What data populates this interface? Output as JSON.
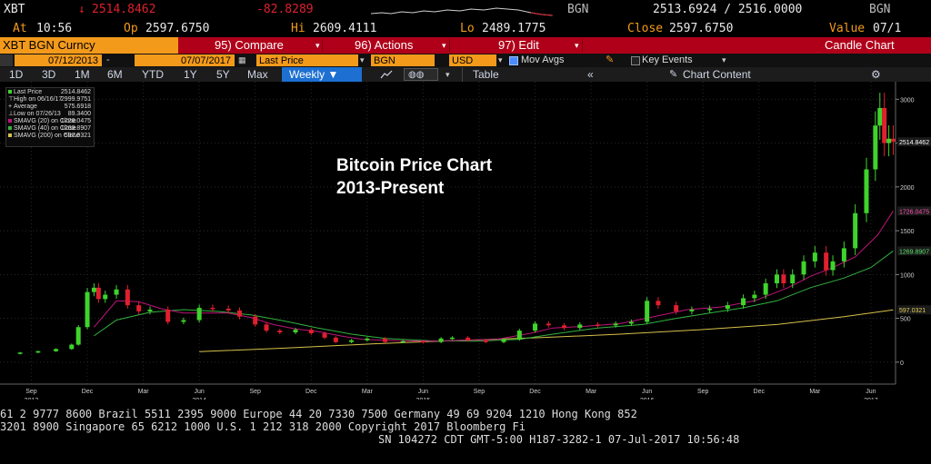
{
  "header": {
    "ticker": "XBT",
    "arrow": "↓",
    "last": "2514.8462",
    "change": "-82.8289",
    "currency1": "BGN",
    "bidask": "2513.6924 / 2516.0000",
    "currency2": "BGN",
    "at_label": "At",
    "time": "10:56",
    "op_label": "Op",
    "open": "2597.6750",
    "hi_label": "Hi",
    "high": "2609.4111",
    "lo_label": "Lo",
    "low": "2489.1775",
    "close_label": "Close",
    "close": "2597.6750",
    "value_label": "Value",
    "value": "07/1"
  },
  "menu": {
    "security": "XBT BGN Curncy",
    "compare": "95) Compare",
    "actions": "96) Actions",
    "edit": "97) Edit",
    "chart_type": "Candle Chart"
  },
  "toolbar": {
    "start_date": "07/12/2013",
    "end_date": "07/07/2017",
    "field": "Last Price",
    "source": "BGN",
    "currency": "USD",
    "mov_avgs": "Mov Avgs",
    "key_events": "Key Events"
  },
  "periods": {
    "items": [
      "1D",
      "3D",
      "1M",
      "6M",
      "YTD",
      "1Y",
      "5Y",
      "Max"
    ],
    "frequency": "Weekly ▼",
    "table": "Table",
    "chart_content": "Chart Content"
  },
  "legend": [
    {
      "label": "Last Price",
      "value": "2514.8462"
    },
    {
      "label": "High on 06/16/17",
      "value": "2999.9751"
    },
    {
      "label": "Average",
      "value": "575.6918"
    },
    {
      "label": "Low on 07/26/13",
      "value": "89.3400"
    },
    {
      "label": "SMAVG (20) on Close",
      "value": "1726.0475"
    },
    {
      "label": "SMAVG (40) on Close",
      "value": "1269.8907"
    },
    {
      "label": "SMAVG (200) on Close",
      "value": "597.0321"
    }
  ],
  "annotation": {
    "line1": "Bitcoin Price Chart",
    "line2": "2013-Present"
  },
  "colors": {
    "up": "#3fd42c",
    "down": "#e0202e",
    "sma20": "#c0147a",
    "sma40": "#33b23f",
    "sma200": "#d8c04a",
    "red_bar": "#b00019",
    "orange_field": "#f39a1b"
  },
  "chart_data": {
    "type": "candlestick",
    "title": "Bitcoin Price Chart 2013-Present",
    "y_ticks": [
      0,
      500,
      1000,
      1500,
      2000,
      2500,
      3000
    ],
    "ylim": [
      -250,
      3200
    ],
    "xlim": [
      2013.53,
      2017.53
    ],
    "x_ticks": [
      {
        "label": "Sep",
        "x": 2013.67,
        "year": "2013"
      },
      {
        "label": "Dec",
        "x": 2013.92
      },
      {
        "label": "Mar",
        "x": 2014.17
      },
      {
        "label": "Jun",
        "x": 2014.42,
        "year": "2014"
      },
      {
        "label": "Sep",
        "x": 2014.67
      },
      {
        "label": "Dec",
        "x": 2014.92
      },
      {
        "label": "Mar",
        "x": 2015.17
      },
      {
        "label": "Jun",
        "x": 2015.42,
        "year": "2015"
      },
      {
        "label": "Sep",
        "x": 2015.67
      },
      {
        "label": "Dec",
        "x": 2015.92
      },
      {
        "label": "Mar",
        "x": 2016.17
      },
      {
        "label": "Jun",
        "x": 2016.42,
        "year": "2016"
      },
      {
        "label": "Sep",
        "x": 2016.67
      },
      {
        "label": "Dec",
        "x": 2016.92
      },
      {
        "label": "Mar",
        "x": 2017.17
      },
      {
        "label": "Jun",
        "x": 2017.42,
        "year": "2017"
      }
    ],
    "last_price_tag": "2514.8462",
    "sma20_tag": "1726.0475",
    "sma40_tag": "1269.8907",
    "sma200_tag": "597.0321",
    "price_series": [
      [
        2013.55,
        95
      ],
      [
        2013.62,
        110
      ],
      [
        2013.7,
        125
      ],
      [
        2013.78,
        150
      ],
      [
        2013.85,
        200
      ],
      [
        2013.88,
        400
      ],
      [
        2013.92,
        800
      ],
      [
        2013.95,
        850
      ],
      [
        2013.97,
        720
      ],
      [
        2014.0,
        770
      ],
      [
        2014.05,
        830
      ],
      [
        2014.1,
        650
      ],
      [
        2014.15,
        580
      ],
      [
        2014.2,
        600
      ],
      [
        2014.28,
        460
      ],
      [
        2014.35,
        480
      ],
      [
        2014.42,
        620
      ],
      [
        2014.48,
        610
      ],
      [
        2014.55,
        590
      ],
      [
        2014.6,
        520
      ],
      [
        2014.67,
        430
      ],
      [
        2014.72,
        360
      ],
      [
        2014.78,
        340
      ],
      [
        2014.85,
        370
      ],
      [
        2014.92,
        330
      ],
      [
        2014.98,
        280
      ],
      [
        2015.03,
        230
      ],
      [
        2015.1,
        250
      ],
      [
        2015.17,
        270
      ],
      [
        2015.25,
        230
      ],
      [
        2015.33,
        240
      ],
      [
        2015.42,
        230
      ],
      [
        2015.5,
        270
      ],
      [
        2015.55,
        280
      ],
      [
        2015.62,
        250
      ],
      [
        2015.7,
        230
      ],
      [
        2015.78,
        260
      ],
      [
        2015.85,
        360
      ],
      [
        2015.92,
        440
      ],
      [
        2015.98,
        420
      ],
      [
        2016.05,
        390
      ],
      [
        2016.12,
        430
      ],
      [
        2016.2,
        420
      ],
      [
        2016.28,
        440
      ],
      [
        2016.35,
        460
      ],
      [
        2016.42,
        700
      ],
      [
        2016.47,
        650
      ],
      [
        2016.55,
        580
      ],
      [
        2016.62,
        600
      ],
      [
        2016.7,
        610
      ],
      [
        2016.78,
        650
      ],
      [
        2016.85,
        730
      ],
      [
        2016.9,
        770
      ],
      [
        2016.95,
        900
      ],
      [
        2017.0,
        1000
      ],
      [
        2017.03,
        900
      ],
      [
        2017.07,
        1000
      ],
      [
        2017.12,
        1150
      ],
      [
        2017.17,
        1250
      ],
      [
        2017.22,
        1050
      ],
      [
        2017.25,
        1150
      ],
      [
        2017.3,
        1300
      ],
      [
        2017.35,
        1700
      ],
      [
        2017.4,
        2200
      ],
      [
        2017.44,
        2700
      ],
      [
        2017.46,
        2900
      ],
      [
        2017.48,
        2500
      ],
      [
        2017.5,
        2550
      ],
      [
        2017.52,
        2515
      ]
    ],
    "sma20_series": [
      [
        2013.95,
        400
      ],
      [
        2014.05,
        700
      ],
      [
        2014.15,
        690
      ],
      [
        2014.25,
        610
      ],
      [
        2014.35,
        560
      ],
      [
        2014.45,
        560
      ],
      [
        2014.55,
        560
      ],
      [
        2014.65,
        510
      ],
      [
        2014.75,
        430
      ],
      [
        2014.85,
        380
      ],
      [
        2014.95,
        350
      ],
      [
        2015.05,
        300
      ],
      [
        2015.15,
        260
      ],
      [
        2015.3,
        245
      ],
      [
        2015.45,
        240
      ],
      [
        2015.6,
        250
      ],
      [
        2015.75,
        260
      ],
      [
        2015.9,
        330
      ],
      [
        2016.0,
        390
      ],
      [
        2016.15,
        410
      ],
      [
        2016.3,
        440
      ],
      [
        2016.45,
        520
      ],
      [
        2016.6,
        600
      ],
      [
        2016.75,
        630
      ],
      [
        2016.9,
        700
      ],
      [
        2017.05,
        850
      ],
      [
        2017.15,
        980
      ],
      [
        2017.25,
        1080
      ],
      [
        2017.35,
        1200
      ],
      [
        2017.45,
        1450
      ],
      [
        2017.52,
        1726
      ]
    ],
    "sma40_series": [
      [
        2013.95,
        300
      ],
      [
        2014.05,
        480
      ],
      [
        2014.2,
        570
      ],
      [
        2014.35,
        600
      ],
      [
        2014.5,
        580
      ],
      [
        2014.65,
        540
      ],
      [
        2014.8,
        470
      ],
      [
        2014.95,
        390
      ],
      [
        2015.1,
        320
      ],
      [
        2015.25,
        270
      ],
      [
        2015.45,
        245
      ],
      [
        2015.65,
        240
      ],
      [
        2015.85,
        260
      ],
      [
        2016.0,
        320
      ],
      [
        2016.2,
        390
      ],
      [
        2016.4,
        430
      ],
      [
        2016.55,
        500
      ],
      [
        2016.7,
        560
      ],
      [
        2016.85,
        620
      ],
      [
        2017.0,
        700
      ],
      [
        2017.15,
        850
      ],
      [
        2017.3,
        960
      ],
      [
        2017.42,
        1080
      ],
      [
        2017.52,
        1270
      ]
    ],
    "sma200_series": [
      [
        2014.42,
        120
      ],
      [
        2014.8,
        160
      ],
      [
        2015.2,
        210
      ],
      [
        2015.6,
        250
      ],
      [
        2015.95,
        280
      ],
      [
        2016.3,
        320
      ],
      [
        2016.65,
        370
      ],
      [
        2017.0,
        430
      ],
      [
        2017.3,
        520
      ],
      [
        2017.52,
        597
      ]
    ]
  },
  "footer": {
    "line1": "61 2 9777 8600 Brazil 5511 2395 9000 Europe 44 20 7330 7500 Germany 49 69 9204 1210 Hong Kong 852",
    "line2": "3201 8900        Singapore 65 6212 1000        U.S. 1 212 318 2000        Copyright 2017 Bloomberg Fi",
    "line3": "SN 104272 CDT  GMT-5:00 H187-3282-1 07-Jul-2017 10:56:48"
  }
}
